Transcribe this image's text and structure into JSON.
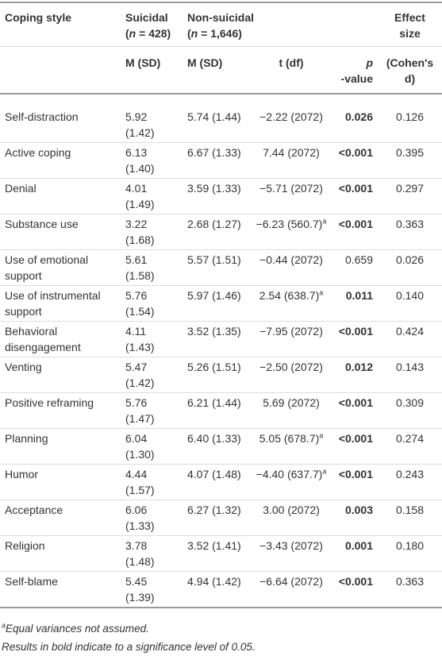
{
  "table": {
    "header": {
      "coping_style": {
        "lines": [
          [
            {
              "text": "Coping style"
            }
          ]
        ]
      },
      "suicidal": {
        "lines": [
          [
            {
              "text": "Suicidal"
            }
          ],
          [
            {
              "text": "("
            },
            {
              "text": "n",
              "italic": true
            },
            {
              "text": " = 428)"
            }
          ]
        ]
      },
      "non_suicidal": {
        "lines": [
          [
            {
              "text": "Non-suicidal"
            }
          ],
          [
            {
              "text": "("
            },
            {
              "text": "n",
              "italic": true
            },
            {
              "text": " = 1,646)"
            }
          ]
        ]
      },
      "effect_size": {
        "lines": [
          [
            {
              "text": "Effect"
            }
          ],
          [
            {
              "text": "size"
            }
          ]
        ]
      },
      "m_sd_1": {
        "lines": [
          [
            {
              "text": "M (SD)"
            }
          ]
        ]
      },
      "m_sd_2": {
        "lines": [
          [
            {
              "text": "M (SD)"
            }
          ]
        ]
      },
      "t_df": {
        "lines": [
          [
            {
              "text": "t (df)"
            }
          ]
        ]
      },
      "p_value": {
        "lines": [
          [
            {
              "text": "p",
              "italic": true
            }
          ],
          [
            {
              "text": "-value"
            }
          ]
        ]
      },
      "cohens_d": {
        "lines": [
          [
            {
              "text": "(Cohen's"
            }
          ],
          [
            {
              "text": "d)"
            }
          ]
        ]
      }
    },
    "rows": [
      {
        "name": "Self-distraction",
        "suicidal": "5.92 (1.42)",
        "non_suicidal": "5.74 (1.44)",
        "t_df": "−2.22 (2072)",
        "p": "0.026",
        "significant": true,
        "effect": "0.126"
      },
      {
        "name": "Active coping",
        "suicidal": "6.13 (1.40)",
        "non_suicidal": "6.67 (1.33)",
        "t_df": "7.44 (2072)",
        "p": "<0.001",
        "significant": true,
        "effect": "0.395"
      },
      {
        "name": "Denial",
        "suicidal": "4.01 (1.49)",
        "non_suicidal": "3.59 (1.33)",
        "t_df": "−5.71 (2072)",
        "p": "<0.001",
        "significant": true,
        "effect": "0.297"
      },
      {
        "name": "Substance use",
        "suicidal": "3.22 (1.68)",
        "non_suicidal": "2.68 (1.27)",
        "t_df": "−6.23 (560.7)",
        "t_note": "a",
        "p": "<0.001",
        "significant": true,
        "effect": "0.363"
      },
      {
        "name": "Use of emotional support",
        "suicidal": "5.61 (1.58)",
        "non_suicidal": "5.57 (1.51)",
        "t_df": "−0.44 (2072)",
        "p": "0.659",
        "significant": false,
        "effect": "0.026"
      },
      {
        "name": "Use of instrumental support",
        "suicidal": "5.76 (1.54)",
        "non_suicidal": "5.97 (1.46)",
        "t_df": "2.54 (638.7)",
        "t_note": "a",
        "p": "0.011",
        "significant": true,
        "effect": "0.140"
      },
      {
        "name": "Behavioral disengagement",
        "suicidal": "4.11 (1.43)",
        "non_suicidal": "3.52 (1.35)",
        "t_df": "−7.95 (2072)",
        "p": "<0.001",
        "significant": true,
        "effect": "0.424"
      },
      {
        "name": "Venting",
        "suicidal": "5.47 (1.42)",
        "non_suicidal": "5.26 (1.51)",
        "t_df": "−2.50 (2072)",
        "p": "0.012",
        "significant": true,
        "effect": "0.143"
      },
      {
        "name": "Positive reframing",
        "suicidal": "5.76 (1.47)",
        "non_suicidal": "6.21 (1.44)",
        "t_df": "5.69 (2072)",
        "p": "<0.001",
        "significant": true,
        "effect": "0.309"
      },
      {
        "name": "Planning",
        "suicidal": "6.04 (1.30)",
        "non_suicidal": "6.40 (1.33)",
        "t_df": "5.05 (678.7)",
        "t_note": "a",
        "p": "<0.001",
        "significant": true,
        "effect": "0.274"
      },
      {
        "name": "Humor",
        "suicidal": "4.44 (1.57)",
        "non_suicidal": "4.07 (1.48)",
        "t_df": "−4.40 (637.7)",
        "t_note": "a",
        "p": "<0.001",
        "significant": true,
        "effect": "0.243"
      },
      {
        "name": "Acceptance",
        "suicidal": "6.06 (1.33)",
        "non_suicidal": "6.27 (1.32)",
        "t_df": "3.00 (2072)",
        "p": "0.003",
        "significant": true,
        "effect": "0.158"
      },
      {
        "name": "Religion",
        "suicidal": "3.78 (1.48)",
        "non_suicidal": "3.52 (1.41)",
        "t_df": "−3.43 (2072)",
        "p": "0.001",
        "significant": true,
        "effect": "0.180"
      },
      {
        "name": "Self-blame",
        "suicidal": "5.45 (1.39)",
        "non_suicidal": "4.94 (1.42)",
        "t_df": "−6.64 (2072)",
        "p": "<0.001",
        "significant": true,
        "effect": "0.363"
      }
    ],
    "footnotes": [
      {
        "mark": "a",
        "text": "Equal variances not assumed."
      },
      {
        "text": "Results in bold indicate to a significance level of 0.05."
      }
    ]
  }
}
